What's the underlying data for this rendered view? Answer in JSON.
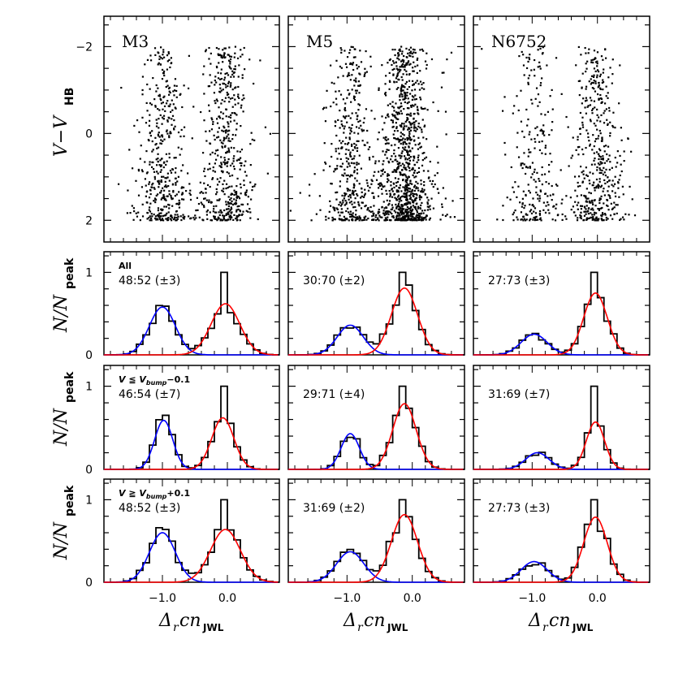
{
  "figure": {
    "ylabel_top": "V−V",
    "ylabel_top_sub": "HB",
    "ylabel_hist": "N/N",
    "ylabel_hist_sub": "peak",
    "xlabel": "Δ",
    "xlabel_sub_r": "r",
    "xlabel_cn": "cn",
    "xlabel_sub": "JWL",
    "xticks": [
      "−1.0",
      "0.0"
    ],
    "yticks_top": [
      "−2",
      "0",
      "2"
    ],
    "yticks_hist": [
      "0",
      "1"
    ],
    "colors": {
      "hist": "#000000",
      "blue_fit": "#0000ff",
      "red_fit": "#ff0000"
    }
  },
  "clusters": [
    {
      "name": "M3",
      "row_labels": [
        "All",
        "V ≦ V_bump −0.1",
        "V ≧ V_bump +0.1"
      ],
      "ratios": [
        "48:52 (±3)",
        "46:54 (±7)",
        "48:52 (±3)"
      ]
    },
    {
      "name": "M5",
      "ratios": [
        "30:70 (±2)",
        "29:71 (±4)",
        "31:69 (±2)"
      ]
    },
    {
      "name": "N6752",
      "ratios": [
        "27:73 (±3)",
        "31:69 (±7)",
        "27:73 (±3)"
      ]
    }
  ],
  "row_labels": {
    "all": "All",
    "bright_pre": "V ≦ V",
    "bright_sub": "bump",
    "bright_post": "−0.1",
    "faint_pre": "V ≧ V",
    "faint_sub": "bump",
    "faint_post": "+0.1"
  },
  "chart_data": [
    {
      "type": "scatter",
      "title": "M3",
      "xlabel": "Δ_r cn_JWL",
      "ylabel": "V−V_HB",
      "xlim": [
        -1.9,
        0.8
      ],
      "ylim": [
        2.5,
        -2.7
      ],
      "description": "Two vertical sequences of RGB stars centered at Δrcn≈-1.0 and 0.0, V−V_HB from -2 to 2"
    },
    {
      "type": "scatter",
      "title": "M5",
      "xlabel": "Δ_r cn_JWL",
      "ylabel": "V−V_HB",
      "xlim": [
        -1.9,
        0.8
      ],
      "ylim": [
        2.5,
        -2.7
      ],
      "description": "Two sequences at ≈-1.0 and -0.1, richer CN-strong branch"
    },
    {
      "type": "scatter",
      "title": "N6752",
      "xlabel": "Δ_r cn_JWL",
      "ylabel": "V−V_HB",
      "xlim": [
        -1.9,
        0.8
      ],
      "ylim": [
        2.5,
        -2.7
      ],
      "description": "Two sequences at ≈-1.0 and 0.0"
    },
    {
      "type": "line",
      "title": "M3 All",
      "ratio": "48:52 (±3)",
      "ylabel": "N/N_peak",
      "ylim": [
        0,
        1.25
      ],
      "series": [
        {
          "name": "blue gaussian",
          "mu": -1.0,
          "sigma": 0.2,
          "amp": 0.58
        },
        {
          "name": "red gaussian",
          "mu": -0.03,
          "sigma": 0.22,
          "amp": 0.62
        }
      ]
    },
    {
      "type": "line",
      "title": "M3 V<=Vbump-0.1",
      "ratio": "46:54 (±7)",
      "ylim": [
        0,
        1.25
      ],
      "series": [
        {
          "name": "blue gaussian",
          "mu": -0.98,
          "sigma": 0.14,
          "amp": 0.59
        },
        {
          "name": "red gaussian",
          "mu": -0.07,
          "sigma": 0.17,
          "amp": 0.62
        }
      ]
    },
    {
      "type": "line",
      "title": "M3 V>=Vbump+0.1",
      "ratio": "48:52 (±3)",
      "ylim": [
        0,
        1.25
      ],
      "series": [
        {
          "name": "blue gaussian",
          "mu": -1.0,
          "sigma": 0.2,
          "amp": 0.6
        },
        {
          "name": "red gaussian",
          "mu": -0.03,
          "sigma": 0.23,
          "amp": 0.64
        }
      ]
    },
    {
      "type": "line",
      "title": "M5 All",
      "ratio": "30:70 (±2)",
      "ylim": [
        0,
        1.25
      ],
      "series": [
        {
          "name": "blue gaussian",
          "mu": -0.95,
          "sigma": 0.2,
          "amp": 0.36
        },
        {
          "name": "red gaussian",
          "mu": -0.12,
          "sigma": 0.2,
          "amp": 0.81
        }
      ]
    },
    {
      "type": "line",
      "title": "M5 V<=Vbump-0.1",
      "ratio": "29:71 (±4)",
      "ylim": [
        0,
        1.25
      ],
      "series": [
        {
          "name": "blue gaussian",
          "mu": -0.95,
          "sigma": 0.14,
          "amp": 0.43
        },
        {
          "name": "red gaussian",
          "mu": -0.12,
          "sigma": 0.18,
          "amp": 0.79
        }
      ]
    },
    {
      "type": "line",
      "title": "M5 V>=Vbump+0.1",
      "ratio": "31:69 (±2)",
      "ylim": [
        0,
        1.25
      ],
      "series": [
        {
          "name": "blue gaussian",
          "mu": -0.95,
          "sigma": 0.21,
          "amp": 0.37
        },
        {
          "name": "red gaussian",
          "mu": -0.12,
          "sigma": 0.2,
          "amp": 0.82
        }
      ]
    },
    {
      "type": "line",
      "title": "N6752 All",
      "ratio": "27:73 (±3)",
      "ylim": [
        0,
        1.25
      ],
      "series": [
        {
          "name": "blue gaussian",
          "mu": -0.97,
          "sigma": 0.2,
          "amp": 0.25
        },
        {
          "name": "red gaussian",
          "mu": -0.03,
          "sigma": 0.18,
          "amp": 0.75
        }
      ]
    },
    {
      "type": "line",
      "title": "N6752 V<=Vbump-0.1",
      "ratio": "31:69 (±7)",
      "ylim": [
        0,
        1.25
      ],
      "series": [
        {
          "name": "blue gaussian",
          "mu": -0.92,
          "sigma": 0.18,
          "amp": 0.2
        },
        {
          "name": "red gaussian",
          "mu": -0.03,
          "sigma": 0.14,
          "amp": 0.57
        }
      ]
    },
    {
      "type": "line",
      "title": "N6752 V>=Vbump+0.1",
      "ratio": "27:73 (±3)",
      "ylim": [
        0,
        1.25
      ],
      "series": [
        {
          "name": "blue gaussian",
          "mu": -0.97,
          "sigma": 0.2,
          "amp": 0.25
        },
        {
          "name": "red gaussian",
          "mu": -0.03,
          "sigma": 0.18,
          "amp": 0.79
        }
      ]
    }
  ]
}
